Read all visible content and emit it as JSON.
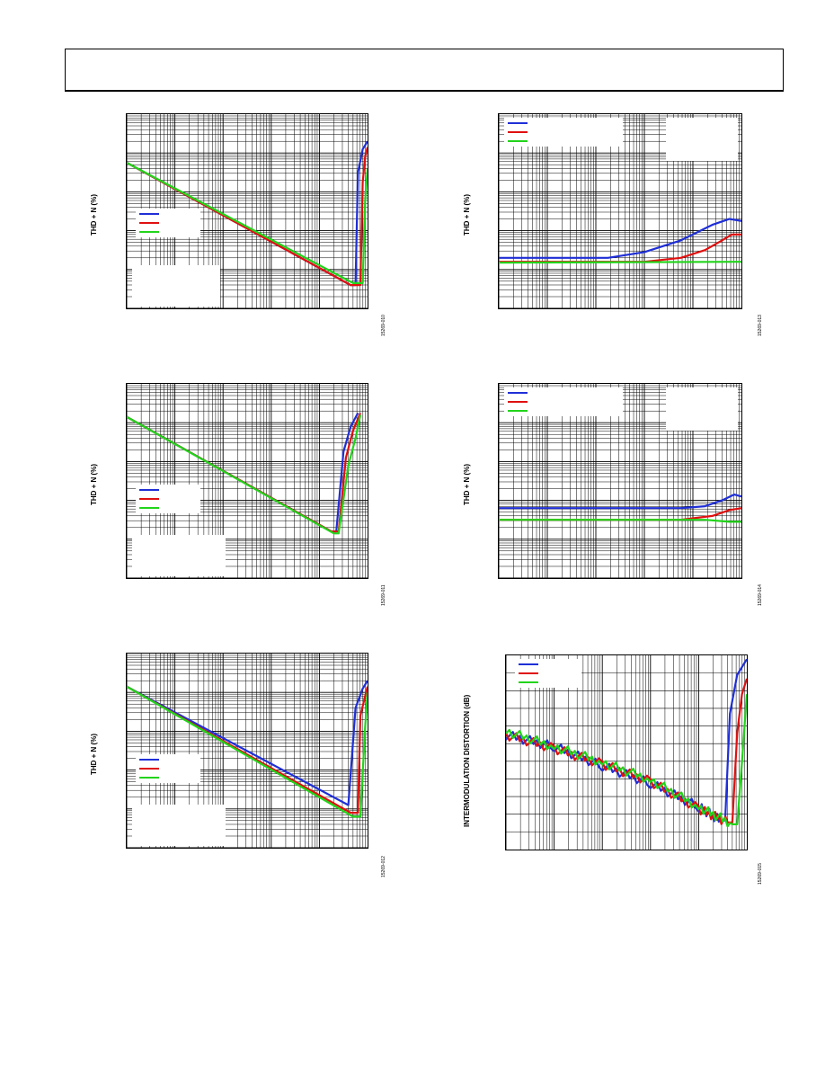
{
  "page": {
    "header": {}
  },
  "colors": {
    "series1": "#1f2fd6",
    "series2": "#e01010",
    "series3": "#22d41b",
    "grid": "#000000"
  },
  "charts": [
    {
      "id": "fig-10",
      "ylabel": "THD + N (%)",
      "figure_id": "15269-010"
    },
    {
      "id": "fig-11",
      "ylabel": "THD + N (%)",
      "figure_id": "15269-011"
    },
    {
      "id": "fig-12",
      "ylabel": "THD + N (%)",
      "figure_id": "15269-012"
    },
    {
      "id": "fig-13",
      "ylabel": "THD + N (%)",
      "figure_id": "15269-013"
    },
    {
      "id": "fig-14",
      "ylabel": "THD + N (%)",
      "figure_id": "15269-014"
    },
    {
      "id": "fig-15",
      "ylabel": "INTERMODULATION DISTORTION (dB)",
      "figure_id": "15269-015"
    }
  ],
  "chart_data": [
    {
      "type": "line",
      "xscale": "log",
      "yscale": "log",
      "grid": true,
      "legend": "left",
      "ylabel": "THD + N (%)",
      "series": [
        {
          "x": [
            0.0,
            0.93,
            0.95,
            0.96,
            0.98,
            1.0
          ],
          "y": [
            0.75,
            0.12,
            0.12,
            0.7,
            0.82,
            0.86
          ]
        },
        {
          "x": [
            0.0,
            0.93,
            0.97,
            0.98,
            0.99,
            1.0
          ],
          "y": [
            0.75,
            0.12,
            0.12,
            0.65,
            0.78,
            0.83
          ]
        },
        {
          "x": [
            0.0,
            0.94,
            0.98,
            0.99,
            1.0
          ],
          "y": [
            0.75,
            0.13,
            0.13,
            0.55,
            0.72
          ]
        }
      ]
    },
    {
      "type": "line",
      "xscale": "log",
      "yscale": "log",
      "grid": true,
      "legend": "left",
      "ylabel": "THD + N (%)",
      "series": [
        {
          "x": [
            0.0,
            0.85,
            0.87,
            0.9,
            0.93,
            0.96
          ],
          "y": [
            0.83,
            0.24,
            0.24,
            0.65,
            0.78,
            0.85
          ]
        },
        {
          "x": [
            0.0,
            0.85,
            0.88,
            0.91,
            0.94,
            0.97
          ],
          "y": [
            0.83,
            0.24,
            0.24,
            0.62,
            0.76,
            0.85
          ]
        },
        {
          "x": [
            0.0,
            0.86,
            0.88,
            0.92,
            0.95,
            0.97
          ],
          "y": [
            0.83,
            0.23,
            0.23,
            0.58,
            0.72,
            0.84
          ]
        }
      ]
    },
    {
      "type": "line",
      "xscale": "log",
      "yscale": "log",
      "grid": true,
      "legend": "left",
      "ylabel": "THD + N (%)",
      "series": [
        {
          "x": [
            0.0,
            0.92,
            0.92,
            0.95,
            0.98,
            1.0
          ],
          "y": [
            0.83,
            0.22,
            0.22,
            0.72,
            0.82,
            0.86
          ]
        },
        {
          "x": [
            0.0,
            0.93,
            0.96,
            0.97,
            0.99,
            1.0
          ],
          "y": [
            0.83,
            0.18,
            0.18,
            0.68,
            0.78,
            0.83
          ]
        },
        {
          "x": [
            0.0,
            0.94,
            0.97,
            0.99,
            1.0
          ],
          "y": [
            0.83,
            0.16,
            0.16,
            0.62,
            0.8
          ]
        }
      ]
    },
    {
      "type": "line",
      "xscale": "log",
      "yscale": "log",
      "grid": true,
      "legend": "top-left",
      "ylabel": "THD + N (%)",
      "series": [
        {
          "x": [
            0.0,
            0.45,
            0.6,
            0.75,
            0.88,
            0.95,
            1.0
          ],
          "y": [
            0.26,
            0.26,
            0.29,
            0.35,
            0.43,
            0.46,
            0.45
          ]
        },
        {
          "x": [
            0.0,
            0.6,
            0.75,
            0.85,
            0.92,
            0.96,
            1.0
          ],
          "y": [
            0.24,
            0.24,
            0.26,
            0.3,
            0.35,
            0.38,
            0.38
          ]
        },
        {
          "x": [
            0.0,
            1.0
          ],
          "y": [
            0.235,
            0.24
          ]
        }
      ]
    },
    {
      "type": "line",
      "xscale": "log",
      "yscale": "log",
      "grid": true,
      "legend": "top-left",
      "ylabel": "THD + N (%)",
      "series": [
        {
          "x": [
            0.0,
            0.75,
            0.85,
            0.92,
            0.97,
            1.0
          ],
          "y": [
            0.36,
            0.36,
            0.37,
            0.4,
            0.43,
            0.42
          ]
        },
        {
          "x": [
            0.0,
            0.75,
            0.88,
            0.95,
            1.0
          ],
          "y": [
            0.3,
            0.3,
            0.32,
            0.35,
            0.36
          ]
        },
        {
          "x": [
            0.0,
            0.85,
            0.95,
            1.0
          ],
          "y": [
            0.3,
            0.3,
            0.29,
            0.29
          ]
        }
      ]
    },
    {
      "type": "line",
      "xscale": "log",
      "grid": true,
      "legend": "top-left",
      "ylabel": "INTERMODULATION DISTORTION (dB)",
      "series": [
        {
          "x": [
            0.0,
            0.2,
            0.4,
            0.6,
            0.8,
            0.89,
            0.91,
            0.93,
            0.96,
            1.0
          ],
          "y": [
            0.59,
            0.53,
            0.43,
            0.34,
            0.22,
            0.15,
            0.15,
            0.7,
            0.9,
            0.98
          ]
        },
        {
          "x": [
            0.0,
            0.2,
            0.4,
            0.6,
            0.8,
            0.92,
            0.94,
            0.96,
            0.98,
            1.0
          ],
          "y": [
            0.59,
            0.52,
            0.44,
            0.35,
            0.21,
            0.14,
            0.14,
            0.6,
            0.8,
            0.88
          ]
        },
        {
          "x": [
            0.0,
            0.2,
            0.4,
            0.6,
            0.8,
            0.94,
            0.96,
            0.98,
            1.0
          ],
          "y": [
            0.61,
            0.53,
            0.45,
            0.36,
            0.22,
            0.13,
            0.13,
            0.45,
            0.8
          ]
        }
      ]
    }
  ]
}
